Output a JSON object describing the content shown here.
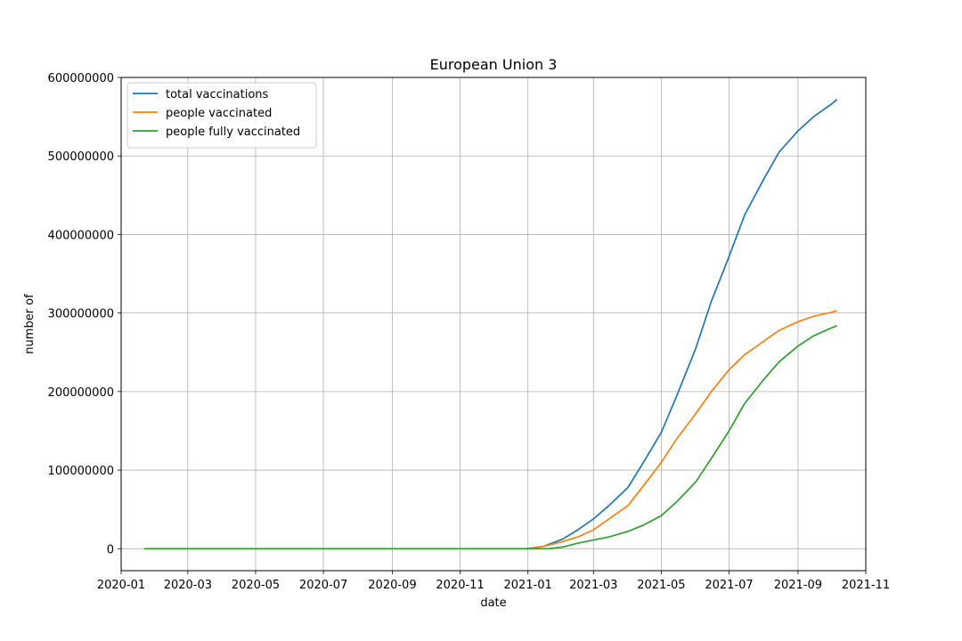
{
  "chart_data": {
    "type": "line",
    "title": "European Union 3",
    "xlabel": "date",
    "ylabel": "number of",
    "x_ticks": [
      "2020-01",
      "2020-03",
      "2020-05",
      "2020-07",
      "2020-09",
      "2020-11",
      "2021-01",
      "2021-03",
      "2021-05",
      "2021-07",
      "2021-09",
      "2021-11"
    ],
    "y_ticks": [
      0,
      100000000,
      200000000,
      300000000,
      400000000,
      500000000,
      600000000
    ],
    "y_tick_labels": [
      "0",
      "100000000",
      "200000000",
      "300000000",
      "400000000",
      "500000000",
      "600000000"
    ],
    "xlim": [
      "2020-01-01",
      "2021-11-01"
    ],
    "ylim": [
      -28000000,
      600000000
    ],
    "grid": true,
    "legend_position": "top-left",
    "series": [
      {
        "name": "total vaccinations",
        "color": "#1f77b4",
        "points": [
          [
            "2020-01-22",
            0
          ],
          [
            "2020-12-31",
            0
          ],
          [
            "2021-01-15",
            3000000
          ],
          [
            "2021-02-01",
            12000000
          ],
          [
            "2021-02-15",
            24000000
          ],
          [
            "2021-03-01",
            38000000
          ],
          [
            "2021-03-15",
            55000000
          ],
          [
            "2021-04-01",
            78000000
          ],
          [
            "2021-04-15",
            110000000
          ],
          [
            "2021-05-01",
            148000000
          ],
          [
            "2021-05-15",
            195000000
          ],
          [
            "2021-06-01",
            255000000
          ],
          [
            "2021-06-15",
            315000000
          ],
          [
            "2021-07-01",
            372000000
          ],
          [
            "2021-07-15",
            425000000
          ],
          [
            "2021-08-01",
            470000000
          ],
          [
            "2021-08-15",
            505000000
          ],
          [
            "2021-09-01",
            532000000
          ],
          [
            "2021-09-15",
            550000000
          ],
          [
            "2021-10-01",
            566000000
          ],
          [
            "2021-10-06",
            572000000
          ]
        ]
      },
      {
        "name": "people vaccinated",
        "color": "#ff7f0e",
        "points": [
          [
            "2020-01-22",
            0
          ],
          [
            "2020-12-31",
            0
          ],
          [
            "2021-01-15",
            3000000
          ],
          [
            "2021-02-01",
            9000000
          ],
          [
            "2021-02-15",
            15000000
          ],
          [
            "2021-03-01",
            24000000
          ],
          [
            "2021-03-15",
            38000000
          ],
          [
            "2021-04-01",
            55000000
          ],
          [
            "2021-04-15",
            80000000
          ],
          [
            "2021-05-01",
            110000000
          ],
          [
            "2021-05-15",
            140000000
          ],
          [
            "2021-06-01",
            172000000
          ],
          [
            "2021-06-15",
            200000000
          ],
          [
            "2021-07-01",
            228000000
          ],
          [
            "2021-07-15",
            247000000
          ],
          [
            "2021-08-01",
            264000000
          ],
          [
            "2021-08-15",
            278000000
          ],
          [
            "2021-09-01",
            289000000
          ],
          [
            "2021-09-15",
            296000000
          ],
          [
            "2021-10-01",
            301000000
          ],
          [
            "2021-10-06",
            303000000
          ]
        ]
      },
      {
        "name": "people fully vaccinated",
        "color": "#2ca02c",
        "points": [
          [
            "2020-01-22",
            0
          ],
          [
            "2021-01-20",
            0
          ],
          [
            "2021-02-01",
            2000000
          ],
          [
            "2021-02-15",
            7000000
          ],
          [
            "2021-03-01",
            11000000
          ],
          [
            "2021-03-15",
            15000000
          ],
          [
            "2021-04-01",
            22000000
          ],
          [
            "2021-04-15",
            30000000
          ],
          [
            "2021-05-01",
            42000000
          ],
          [
            "2021-05-15",
            60000000
          ],
          [
            "2021-06-01",
            85000000
          ],
          [
            "2021-06-15",
            115000000
          ],
          [
            "2021-07-01",
            150000000
          ],
          [
            "2021-07-15",
            185000000
          ],
          [
            "2021-08-01",
            215000000
          ],
          [
            "2021-08-15",
            238000000
          ],
          [
            "2021-09-01",
            258000000
          ],
          [
            "2021-09-15",
            271000000
          ],
          [
            "2021-10-01",
            281000000
          ],
          [
            "2021-10-06",
            284000000
          ]
        ]
      }
    ]
  }
}
